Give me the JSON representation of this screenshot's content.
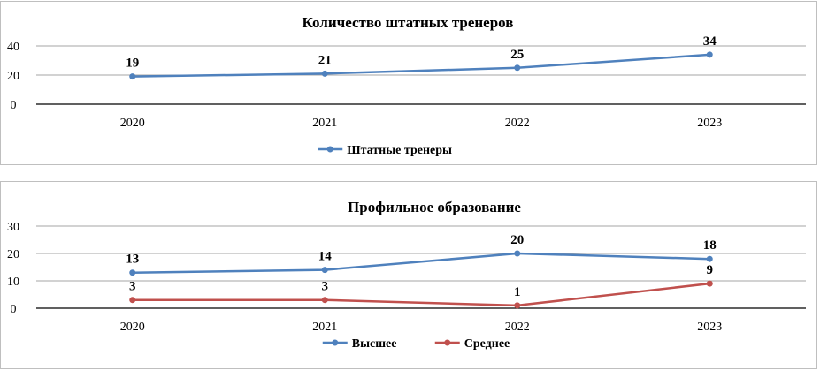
{
  "chart_data": [
    {
      "type": "line",
      "title": "Количество штатных тренеров",
      "categories": [
        "2020",
        "2021",
        "2022",
        "2023"
      ],
      "series": [
        {
          "name": "Штатные тренеры",
          "values": [
            19,
            21,
            25,
            34
          ],
          "color": "#4f81bd"
        }
      ],
      "yticks": [
        "0",
        "20",
        "40"
      ],
      "ylim": [
        0,
        40
      ],
      "grid": true,
      "legend": "bottom",
      "xlabel": "",
      "ylabel": ""
    },
    {
      "type": "line",
      "title": "Профильное образование",
      "categories": [
        "2020",
        "2021",
        "2022",
        "2023"
      ],
      "series": [
        {
          "name": "Высшее",
          "values": [
            13,
            14,
            20,
            18
          ],
          "color": "#4f81bd"
        },
        {
          "name": "Среднее",
          "values": [
            3,
            3,
            1,
            9
          ],
          "color": "#c0504d"
        }
      ],
      "yticks": [
        "0",
        "10",
        "20",
        "30"
      ],
      "ylim": [
        0,
        30
      ],
      "grid": true,
      "legend": "bottom",
      "xlabel": "",
      "ylabel": ""
    }
  ]
}
